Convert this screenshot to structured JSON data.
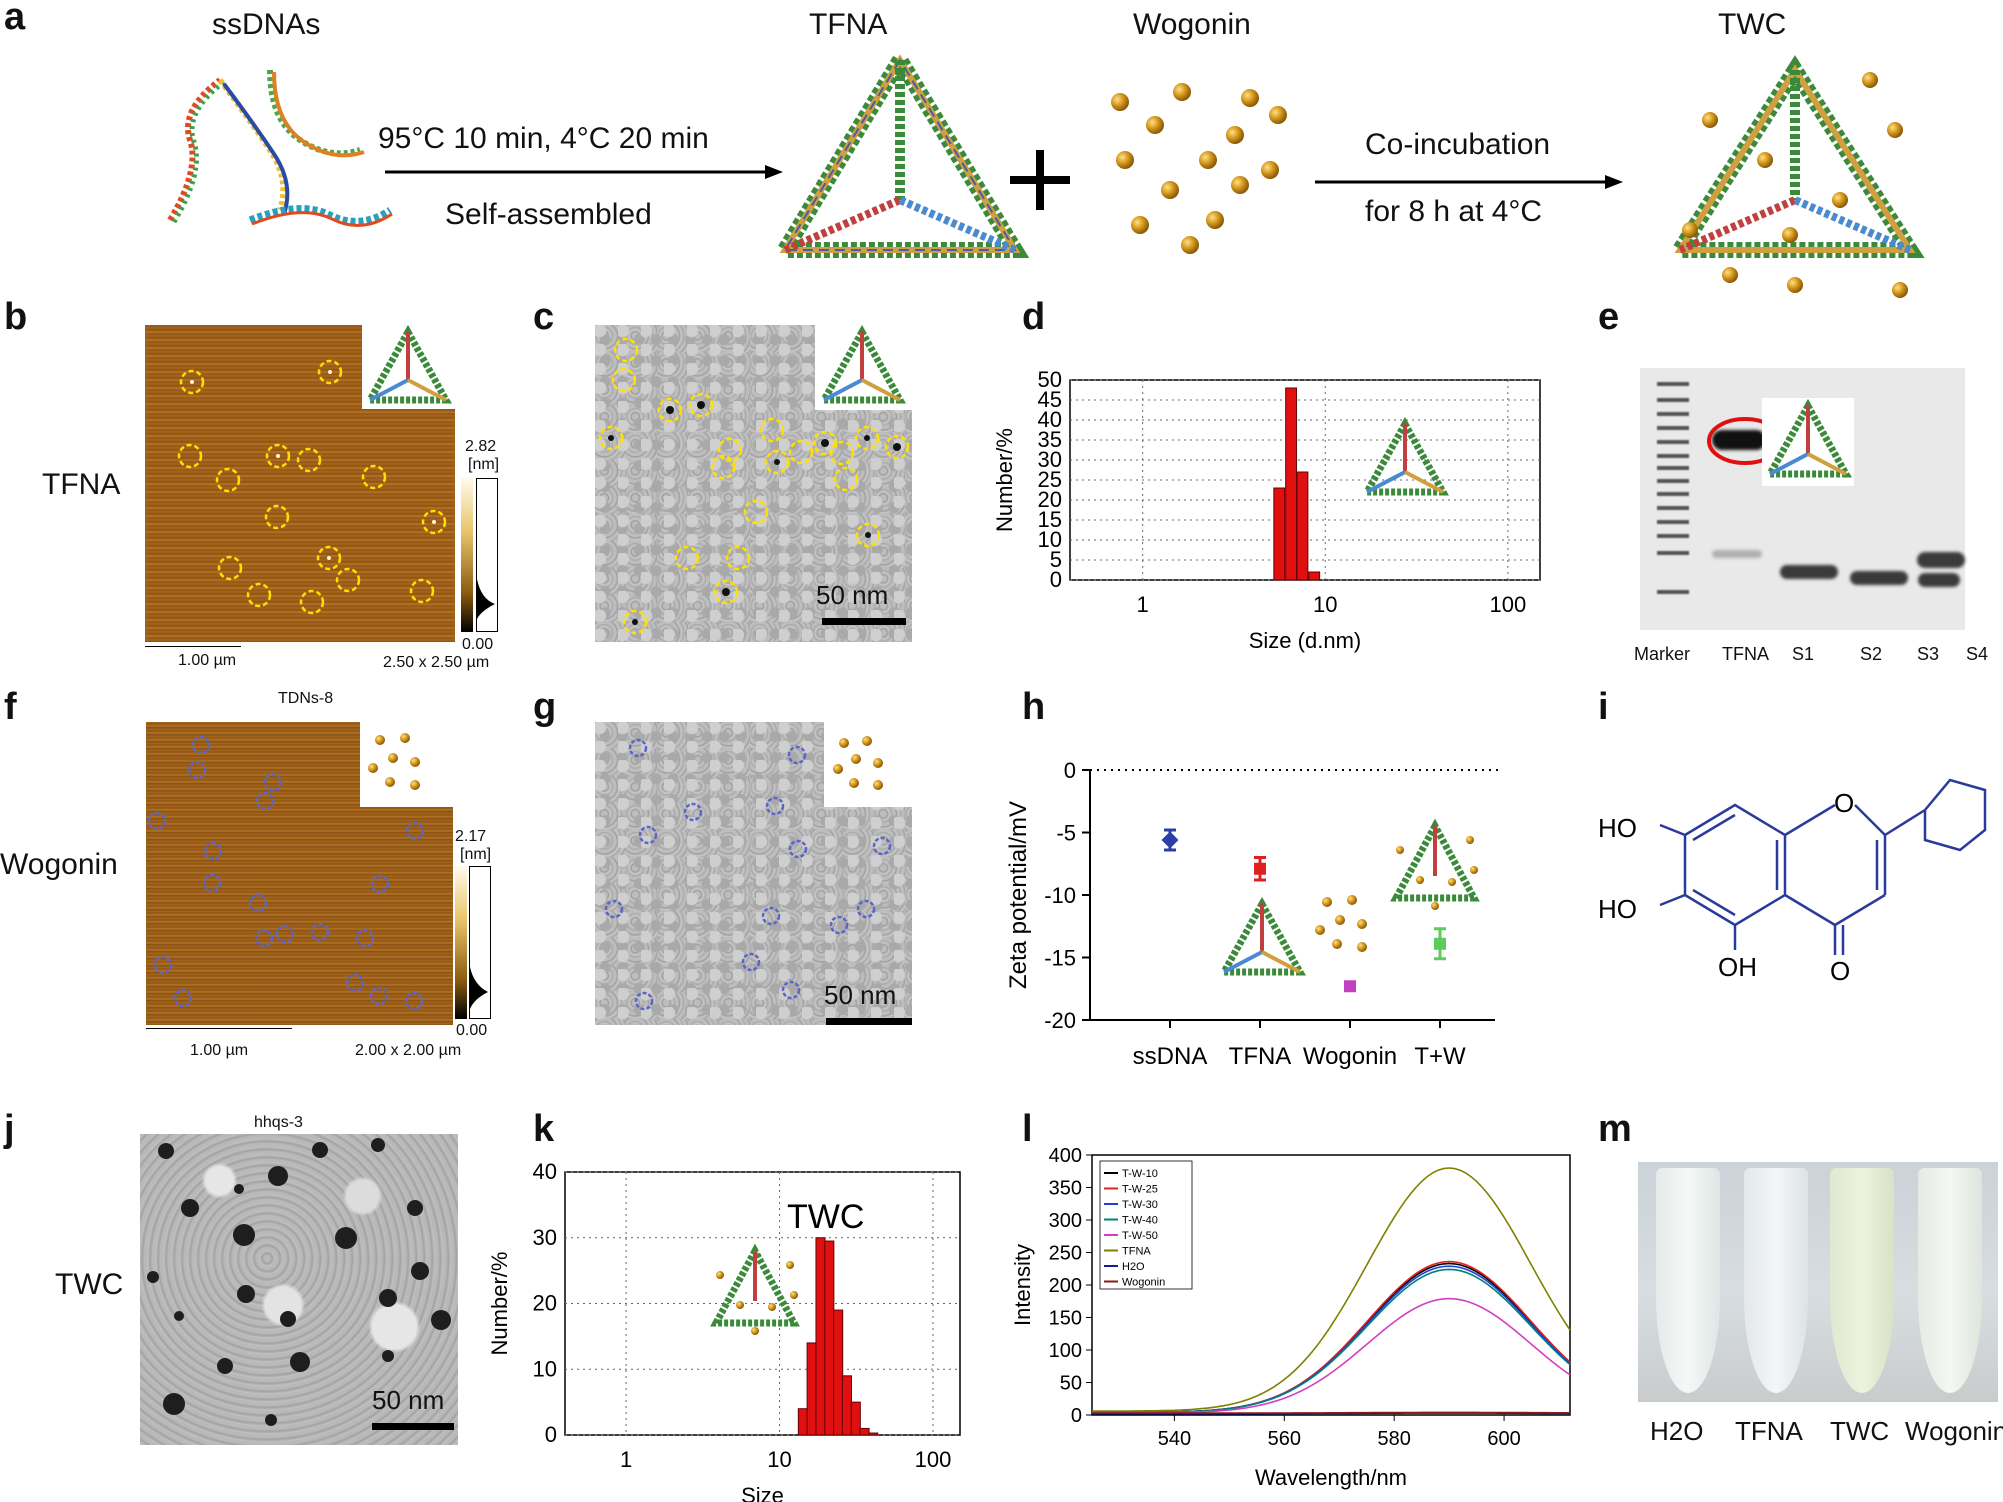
{
  "panels": {
    "a": {
      "label": "a",
      "ssdnas": "ssDNAs",
      "tfna": "TFNA",
      "wogonin": "Wogonin",
      "twc": "TWC",
      "step1_line1": "95°C 10 min, 4°C 20 min",
      "step1_line2": "Self-assembled",
      "step2_line1": "Co-incubation",
      "step2_line2": "for 8 h at 4°C"
    },
    "b": {
      "label": "b",
      "row_label": "TFNA",
      "scale_max": "2.82",
      "unit": "[nm]",
      "scale_min": "0.00",
      "scalebar": "1.00 µm",
      "size": "2.50 x 2.50 µm"
    },
    "c": {
      "label": "c",
      "scalebar": "50 nm"
    },
    "d": {
      "label": "d"
    },
    "e": {
      "label": "e",
      "lanes": [
        "Marker",
        "TFNA",
        "S1",
        "S2",
        "S3",
        "S4"
      ]
    },
    "f": {
      "label": "f",
      "row_label": "Wogonin",
      "title": "TDNs-8",
      "scale_max": "2.17",
      "unit": "[nm]",
      "scale_min": "0.00",
      "scalebar": "1.00 µm",
      "size": "2.00 x 2.00 µm"
    },
    "g": {
      "label": "g",
      "scalebar": "50 nm"
    },
    "h": {
      "label": "h"
    },
    "i": {
      "label": "i",
      "ho1": "HO",
      "ho2": "HO",
      "oh": "OH",
      "o_ring": "O",
      "o_keto": "O"
    },
    "j": {
      "label": "j",
      "row_label": "TWC",
      "title": "hhqs-3",
      "scalebar": "50 nm"
    },
    "k": {
      "label": "k"
    },
    "l": {
      "label": "l"
    },
    "m": {
      "label": "m",
      "tubes": [
        "H2O",
        "TFNA",
        "TWC",
        "Wogonin"
      ]
    }
  },
  "colors": {
    "bar_red": "#e01010",
    "circle_yellow": "#ffe100",
    "circle_blue": "#5a66c8",
    "bead": "#d79a1e",
    "molecule": "#2a3a9c"
  },
  "chart_data": [
    {
      "id": "d",
      "type": "bar",
      "title": "",
      "xlabel": "Size (d.nm)",
      "ylabel": "Number/%",
      "xscale": "log",
      "xlim": [
        0.4,
        150
      ],
      "ylim": [
        0,
        50
      ],
      "xticks": [
        1,
        10,
        100
      ],
      "yticks": [
        0,
        5,
        10,
        15,
        20,
        25,
        30,
        35,
        40,
        45,
        50
      ],
      "x": [
        5.6,
        6.5,
        7.5,
        8.7
      ],
      "values": [
        23,
        48,
        27,
        2
      ]
    },
    {
      "id": "h",
      "type": "scatter",
      "xlabel": "",
      "ylabel": "Zeta potential/mV",
      "categories": [
        "ssDNA",
        "TFNA",
        "Wogonin",
        "T+W"
      ],
      "ylim": [
        -20,
        0
      ],
      "yticks": [
        0,
        -5,
        -10,
        -15,
        -20
      ],
      "values": [
        -5.6,
        -7.9,
        -17.3,
        -13.9
      ],
      "errors": [
        0.8,
        0.9,
        0.3,
        1.2
      ],
      "marker_colors": [
        "#2c3ea8",
        "#e02020",
        "#c040c0",
        "#5ccc5c"
      ]
    },
    {
      "id": "k",
      "type": "bar",
      "title": "TWC",
      "xlabel": "Size",
      "ylabel": "Number/%",
      "xscale": "log",
      "xlim": [
        0.4,
        150
      ],
      "ylim": [
        0,
        40
      ],
      "xticks": [
        1,
        10,
        100
      ],
      "yticks": [
        0,
        10,
        20,
        30,
        40
      ],
      "x": [
        14.2,
        16.2,
        18.5,
        21.1,
        24.1,
        27.5,
        31.4,
        35.8,
        40.8
      ],
      "values": [
        4,
        14,
        30,
        29.5,
        19,
        9,
        5,
        1,
        0.3
      ]
    },
    {
      "id": "l",
      "type": "line",
      "xlabel": "Wavelength/nm",
      "ylabel": "Intensity",
      "xlim": [
        525,
        612
      ],
      "ylim": [
        0,
        400
      ],
      "xticks": [
        540,
        560,
        580,
        600
      ],
      "yticks": [
        0,
        50,
        100,
        150,
        200,
        250,
        300,
        350,
        400
      ],
      "series": [
        {
          "name": "T-W-10",
          "color": "#000000",
          "peak": 233,
          "base": 4
        },
        {
          "name": "T-W-25",
          "color": "#e02020",
          "peak": 236,
          "base": 4
        },
        {
          "name": "T-W-30",
          "color": "#2040d0",
          "peak": 229,
          "base": 4
        },
        {
          "name": "T-W-40",
          "color": "#008080",
          "peak": 224,
          "base": 4
        },
        {
          "name": "T-W-50",
          "color": "#d040c0",
          "peak": 179,
          "base": 3
        },
        {
          "name": "TFNA",
          "color": "#808000",
          "peak": 380,
          "base": 6
        },
        {
          "name": "H2O",
          "color": "#1a1a8c",
          "peak": 3,
          "base": 2
        },
        {
          "name": "Wogonin",
          "color": "#8b1a1a",
          "peak": 4,
          "base": 3
        }
      ]
    }
  ]
}
